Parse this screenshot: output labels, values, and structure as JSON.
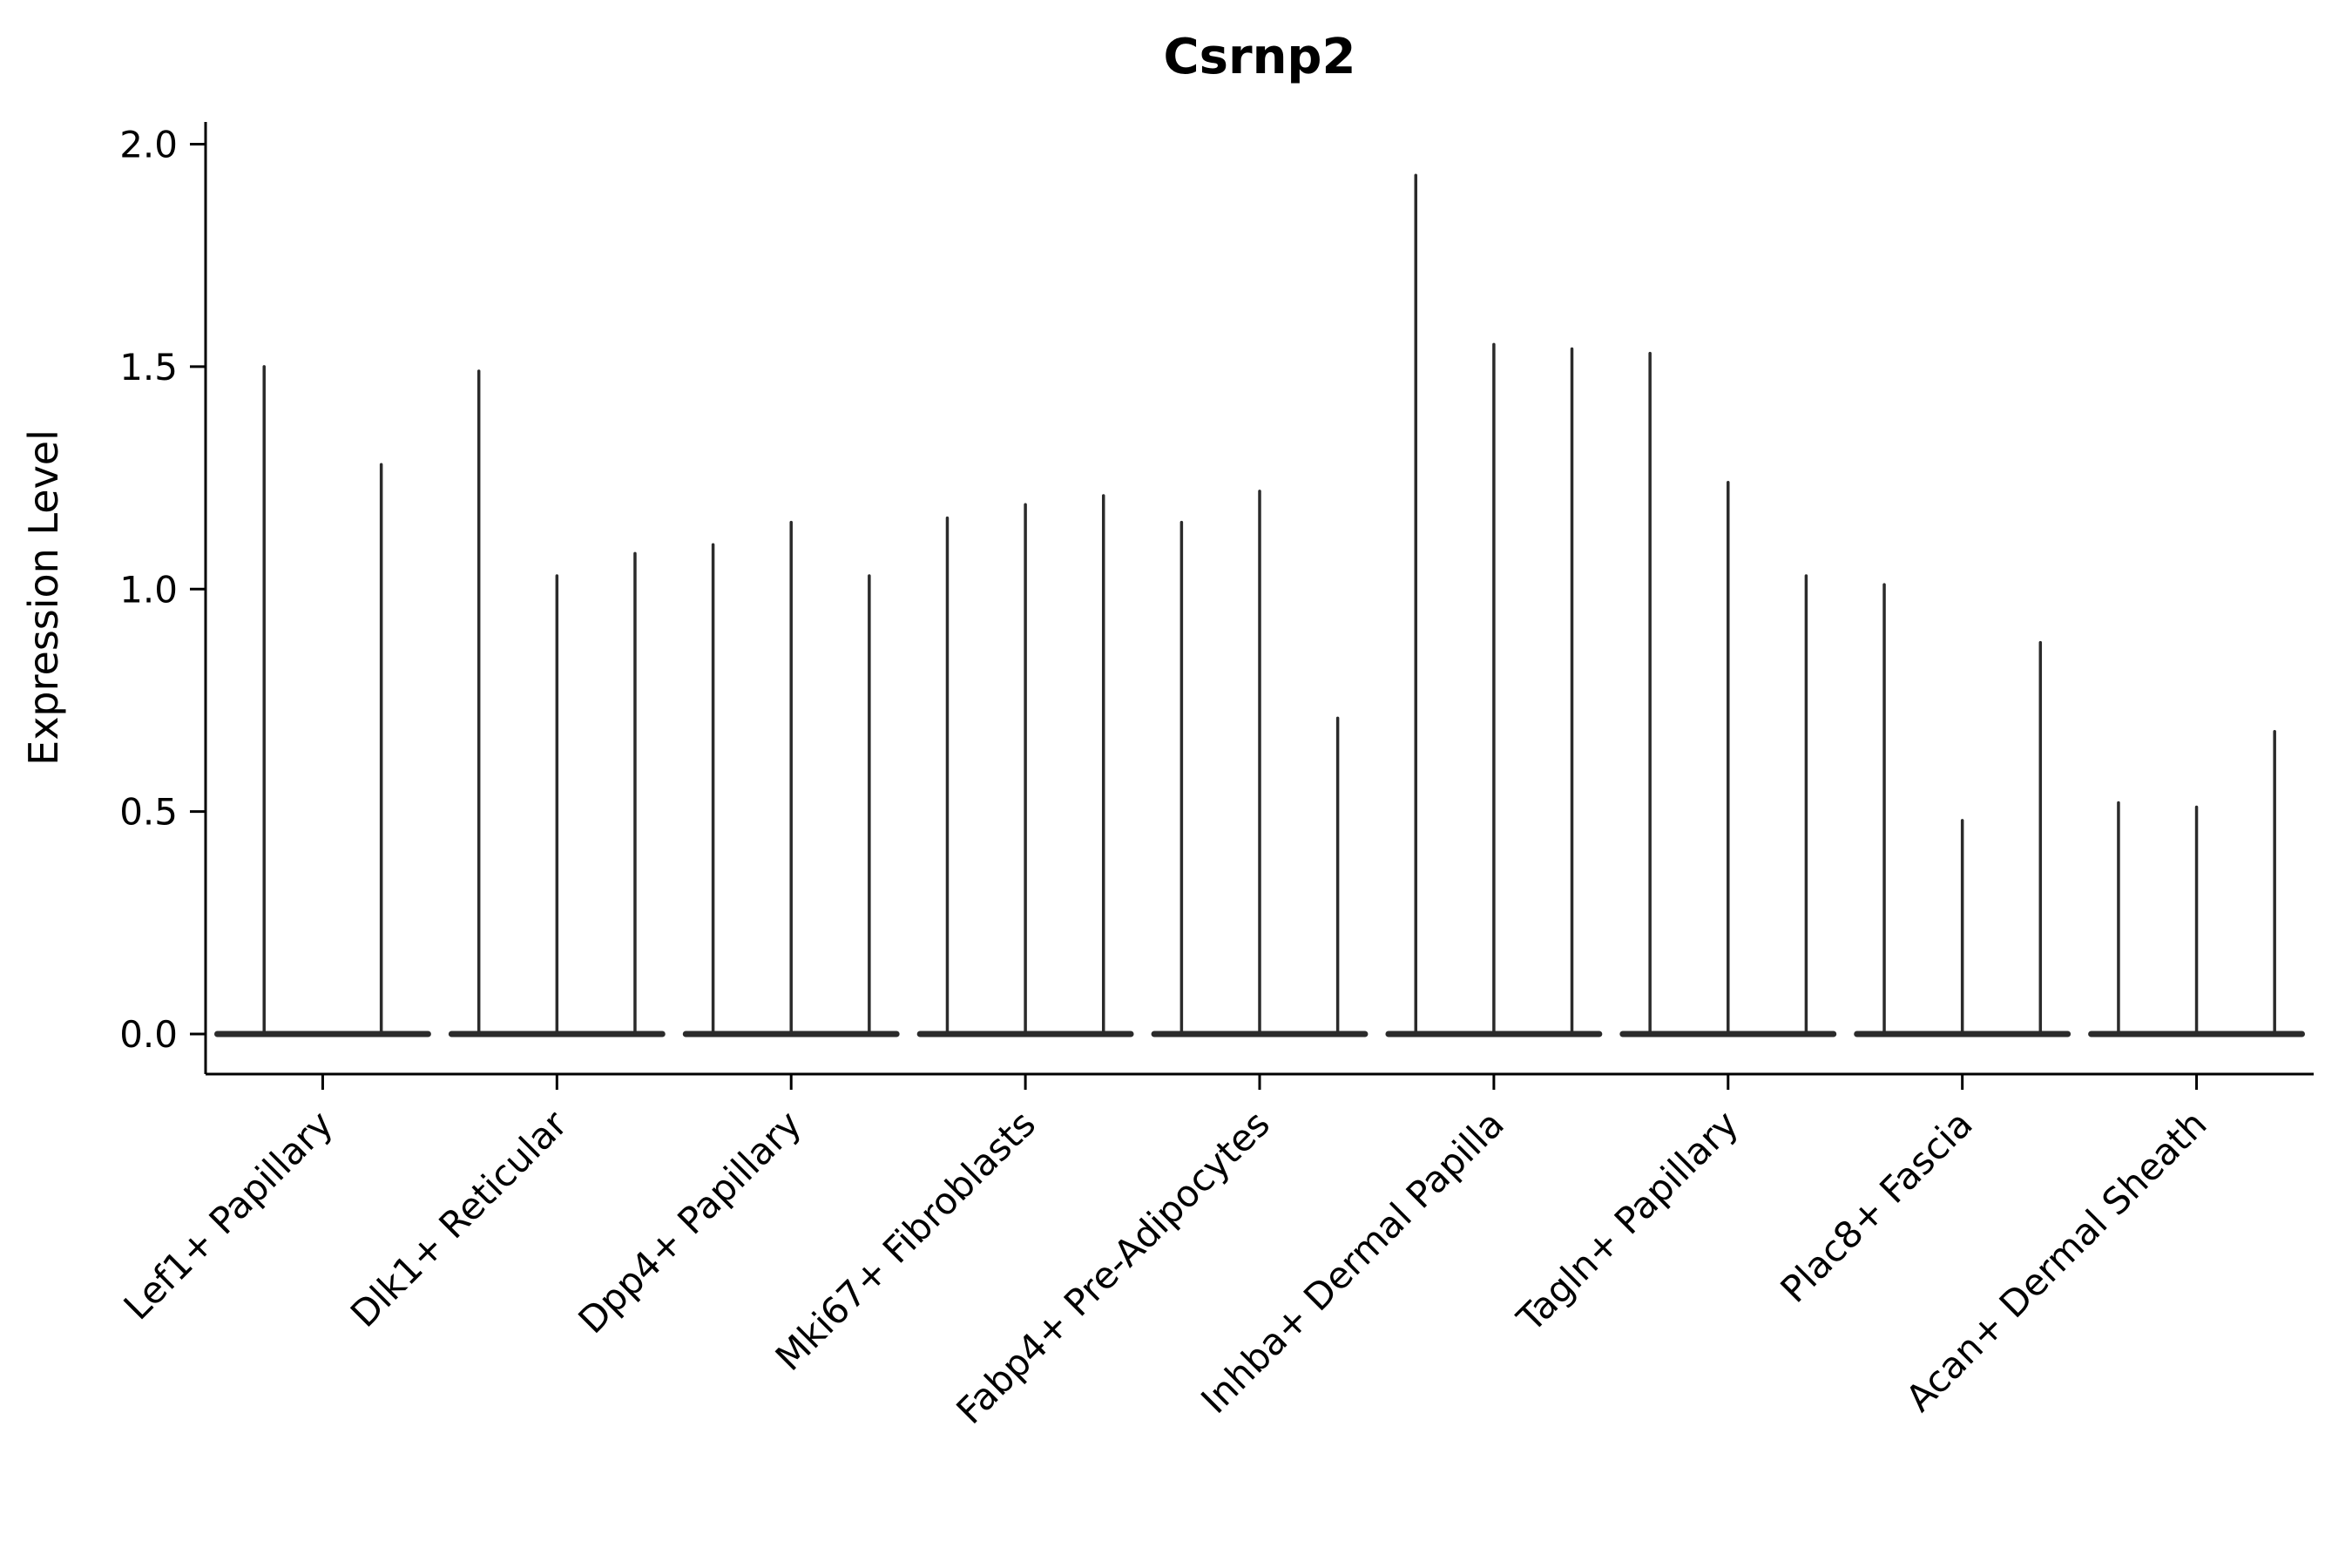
{
  "chart_data": {
    "type": "violin",
    "title": "Csrnp2",
    "xlabel": "",
    "ylabel": "Expression Level",
    "ylim": [
      -0.09,
      2.05
    ],
    "yticks": [
      0.0,
      0.5,
      1.0,
      1.5,
      2.0
    ],
    "ytick_labels": [
      "0.0",
      "0.5",
      "1.0",
      "1.5",
      "2.0"
    ],
    "grid": false,
    "legend": "none",
    "violin_style": "thin-spike-with-flat-base-at-zero",
    "colors": {
      "violin": "#2b2b2b",
      "axis": "#000000",
      "text": "#000000",
      "background": "#ffffff"
    },
    "categories": [
      "Lef1+ Papillary",
      "Dlk1+ Reticular",
      "Dpp4+ Papillary",
      "Mki67+ Fibroblasts",
      "Fabp4+ Pre-Adipocytes",
      "Inhba+ Dermal Papilla",
      "Tagln+ Papillary",
      "Plac8+ Fascia",
      "Acan+ Dermal Sheath"
    ],
    "groups": [
      {
        "category": "Lef1+ Papillary",
        "violin_maxima": [
          1.5,
          1.28
        ]
      },
      {
        "category": "Dlk1+ Reticular",
        "violin_maxima": [
          1.49,
          1.03,
          1.08
        ]
      },
      {
        "category": "Dpp4+ Papillary",
        "violin_maxima": [
          1.1,
          1.15,
          1.03
        ]
      },
      {
        "category": "Mki67+ Fibroblasts",
        "violin_maxima": [
          1.16,
          1.19,
          1.21
        ]
      },
      {
        "category": "Fabp4+ Pre-Adipocytes",
        "violin_maxima": [
          1.15,
          1.22,
          0.71
        ]
      },
      {
        "category": "Inhba+ Dermal Papilla",
        "violin_maxima": [
          1.93,
          1.55,
          1.54
        ]
      },
      {
        "category": "Tagln+ Papillary",
        "violin_maxima": [
          1.53,
          1.24,
          1.03
        ]
      },
      {
        "category": "Plac8+ Fascia",
        "violin_maxima": [
          1.01,
          0.48,
          0.88
        ]
      },
      {
        "category": "Acan+ Dermal Sheath",
        "violin_maxima": [
          0.52,
          0.51,
          0.68
        ]
      }
    ]
  }
}
